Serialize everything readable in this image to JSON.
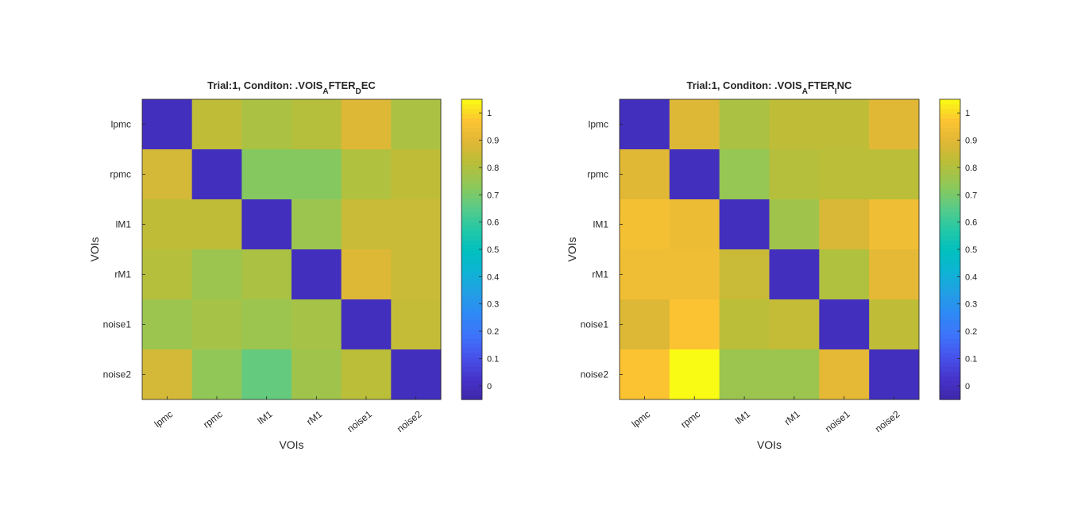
{
  "figure": {
    "background": "#ffffff",
    "axis_color": "#262626"
  },
  "chart_data": [
    {
      "type": "heatmap",
      "title": {
        "prefix": "Trial:1, Conditon: .VOIS",
        "parts": [
          {
            "text": "A",
            "sub": true
          },
          {
            "text": "FTER",
            "sub": false
          },
          {
            "text": "D",
            "sub": true
          },
          {
            "text": "EC",
            "sub": false
          }
        ]
      },
      "xlabel": "VOIs",
      "ylabel": "VOIs",
      "x_tick_labels": [
        "lpmc",
        "rpmc",
        "lM1",
        "rM1",
        "noise1",
        "noise2"
      ],
      "y_tick_labels": [
        "lpmc",
        "rpmc",
        "lM1",
        "rM1",
        "noise1",
        "noise2"
      ],
      "values": [
        [
          0.0,
          0.83,
          0.79,
          0.81,
          0.89,
          0.79
        ],
        [
          0.87,
          0.0,
          0.72,
          0.72,
          0.8,
          0.83
        ],
        [
          0.83,
          0.83,
          0.0,
          0.76,
          0.85,
          0.85
        ],
        [
          0.81,
          0.76,
          0.79,
          0.0,
          0.89,
          0.85
        ],
        [
          0.76,
          0.78,
          0.76,
          0.78,
          0.0,
          0.84
        ],
        [
          0.87,
          0.74,
          0.67,
          0.77,
          0.82,
          0.0
        ]
      ],
      "colorbar": {
        "colormap": "parula",
        "clim": [
          -0.05,
          1.05
        ],
        "ticks": [
          0,
          0.1,
          0.2,
          0.3,
          0.4,
          0.5,
          0.6,
          0.7,
          0.8,
          0.9,
          1
        ],
        "tick_labels": [
          "0",
          "0.1",
          "0.2",
          "0.3",
          "0.4",
          "0.5",
          "0.6",
          "0.7",
          "0.8",
          "0.9",
          "1"
        ]
      }
    },
    {
      "type": "heatmap",
      "title": {
        "prefix": "Trial:1, Conditon: .VOIS",
        "parts": [
          {
            "text": "A",
            "sub": true
          },
          {
            "text": "FTER",
            "sub": false
          },
          {
            "text": "I",
            "sub": true
          },
          {
            "text": "NC",
            "sub": false
          }
        ]
      },
      "xlabel": "VOIs",
      "ylabel": "VOIs",
      "x_tick_labels": [
        "lpmc",
        "rpmc",
        "lM1",
        "rM1",
        "noise1",
        "noise2"
      ],
      "y_tick_labels": [
        "lpmc",
        "rpmc",
        "lM1",
        "rM1",
        "noise1",
        "noise2"
      ],
      "values": [
        [
          0.0,
          0.89,
          0.79,
          0.83,
          0.83,
          0.9
        ],
        [
          0.9,
          0.0,
          0.75,
          0.81,
          0.82,
          0.82
        ],
        [
          0.95,
          0.93,
          0.0,
          0.77,
          0.88,
          0.94
        ],
        [
          0.94,
          0.94,
          0.85,
          0.0,
          0.8,
          0.91
        ],
        [
          0.89,
          0.97,
          0.82,
          0.84,
          0.0,
          0.83
        ],
        [
          0.97,
          1.05,
          0.76,
          0.76,
          0.91,
          0.0
        ]
      ],
      "colorbar": {
        "colormap": "parula",
        "clim": [
          -0.05,
          1.05
        ],
        "ticks": [
          0,
          0.1,
          0.2,
          0.3,
          0.4,
          0.5,
          0.6,
          0.7,
          0.8,
          0.9,
          1
        ],
        "tick_labels": [
          "0",
          "0.1",
          "0.2",
          "0.3",
          "0.4",
          "0.5",
          "0.6",
          "0.7",
          "0.8",
          "0.9",
          "1"
        ]
      }
    }
  ]
}
